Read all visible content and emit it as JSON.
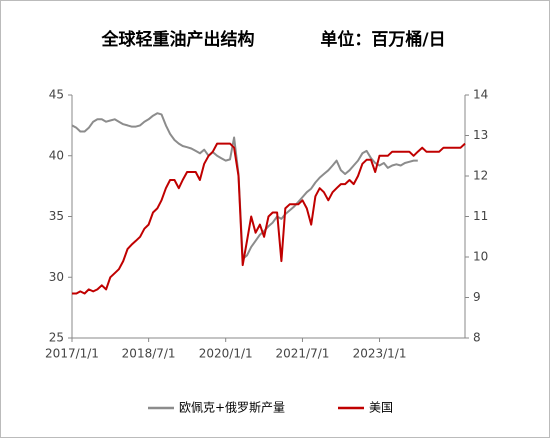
{
  "chart_data": {
    "type": "line",
    "title": "全球轻重油产出结构",
    "unit": "单位：百万桶/日",
    "x": [
      "2017-01-01",
      "2017-02-01",
      "2017-03-01",
      "2017-04-01",
      "2017-05-01",
      "2017-06-01",
      "2017-07-01",
      "2017-08-01",
      "2017-09-01",
      "2017-10-01",
      "2017-11-01",
      "2017-12-01",
      "2018-01-01",
      "2018-02-01",
      "2018-03-01",
      "2018-04-01",
      "2018-05-01",
      "2018-06-01",
      "2018-07-01",
      "2018-08-01",
      "2018-09-01",
      "2018-10-01",
      "2018-11-01",
      "2018-12-01",
      "2019-01-01",
      "2019-02-01",
      "2019-03-01",
      "2019-04-01",
      "2019-05-01",
      "2019-06-01",
      "2019-07-01",
      "2019-08-01",
      "2019-09-01",
      "2019-10-01",
      "2019-11-01",
      "2019-12-01",
      "2020-01-01",
      "2020-02-01",
      "2020-03-01",
      "2020-04-01",
      "2020-05-01",
      "2020-06-01",
      "2020-07-01",
      "2020-08-01",
      "2020-09-01",
      "2020-10-01",
      "2020-11-01",
      "2020-12-01",
      "2021-01-01",
      "2021-02-01",
      "2021-03-01",
      "2021-04-01",
      "2021-05-01",
      "2021-06-01",
      "2021-07-01",
      "2021-08-01",
      "2021-09-01",
      "2021-10-01",
      "2021-11-01",
      "2021-12-01",
      "2022-01-01",
      "2022-02-01",
      "2022-03-01",
      "2022-04-01",
      "2022-05-01",
      "2022-06-01",
      "2022-07-01",
      "2022-08-01",
      "2022-09-01",
      "2022-10-01",
      "2022-11-01",
      "2022-12-01",
      "2023-01-01",
      "2023-02-01",
      "2023-03-01",
      "2023-04-01",
      "2023-05-01",
      "2023-06-01",
      "2023-07-01",
      "2023-08-01",
      "2023-09-01",
      "2023-10-01",
      "2023-11-01",
      "2023-12-01",
      "2024-01-01",
      "2024-02-01",
      "2024-03-01",
      "2024-04-01",
      "2024-05-01",
      "2024-06-01",
      "2024-07-01",
      "2024-08-01",
      "2024-09-01"
    ],
    "series": [
      {
        "name": "欧佩克+俄罗斯产量",
        "color": "#8c8c8c",
        "values": [
          42.5,
          42.3,
          42.0,
          42.0,
          42.3,
          42.8,
          43.0,
          43.0,
          42.8,
          42.9,
          43.0,
          42.8,
          42.6,
          42.5,
          42.4,
          42.4,
          42.5,
          42.8,
          43.0,
          43.3,
          43.5,
          43.4,
          42.5,
          41.8,
          41.3,
          41.0,
          40.8,
          40.7,
          40.6,
          40.4,
          40.2,
          40.5,
          40.0,
          40.3,
          40.0,
          39.8,
          39.6,
          39.7,
          41.5,
          38.5,
          31.5,
          31.8,
          32.5,
          33.0,
          33.5,
          33.8,
          34.2,
          34.5,
          35.0,
          34.8,
          35.2,
          35.5,
          35.8,
          36.2,
          36.6,
          37.0,
          37.3,
          37.8,
          38.2,
          38.5,
          38.8,
          39.2,
          39.6,
          38.8,
          38.5,
          38.8,
          39.2,
          39.6,
          40.2,
          40.4,
          39.8,
          39.4,
          39.2,
          39.4,
          39.0,
          39.2,
          39.3,
          39.2,
          39.4,
          39.5,
          39.6,
          39.6,
          null,
          null,
          null,
          null,
          null,
          null,
          null,
          null,
          null,
          null,
          null
        ]
      },
      {
        "name": "美国",
        "color": "#c00000",
        "axis": "y2",
        "values": [
          9.1,
          9.1,
          9.15,
          9.1,
          9.2,
          9.15,
          9.2,
          9.3,
          9.2,
          9.5,
          9.6,
          9.7,
          9.9,
          10.2,
          10.3,
          10.4,
          10.5,
          10.7,
          10.8,
          11.1,
          11.2,
          11.4,
          11.7,
          11.9,
          11.9,
          11.7,
          11.9,
          12.1,
          12.1,
          12.1,
          11.9,
          12.3,
          12.5,
          12.6,
          12.8,
          12.8,
          12.8,
          12.8,
          12.7,
          12.0,
          9.8,
          10.4,
          11.0,
          10.6,
          10.8,
          10.5,
          11.0,
          11.1,
          11.1,
          9.9,
          11.2,
          11.3,
          11.3,
          11.3,
          11.4,
          11.2,
          10.8,
          11.5,
          11.7,
          11.6,
          11.4,
          11.6,
          11.7,
          11.8,
          11.8,
          11.9,
          11.8,
          12.0,
          12.3,
          12.4,
          12.4,
          12.1,
          12.5,
          12.5,
          12.5,
          12.6,
          12.6,
          12.6,
          12.6,
          12.6,
          12.5,
          12.6,
          12.7,
          12.6,
          12.6,
          12.6,
          12.6,
          12.7,
          12.7,
          12.7,
          12.7,
          12.7,
          12.8
        ]
      }
    ],
    "xlim": [
      "2017-01-01",
      "2024-09-01"
    ],
    "xticks": [
      {
        "value": "2017-01-01",
        "label": "2017/1/1"
      },
      {
        "value": "2018-07-01",
        "label": "2018/7/1"
      },
      {
        "value": "2020-01-01",
        "label": "2020/1/1"
      },
      {
        "value": "2021-07-01",
        "label": "2021/7/1"
      },
      {
        "value": "2023-01-01",
        "label": "2023/1/1"
      }
    ],
    "ylim": [
      25,
      45
    ],
    "yticks": [
      25,
      30,
      35,
      40,
      45
    ],
    "y2lim": [
      8,
      14
    ],
    "y2ticks": [
      8,
      9,
      10,
      11,
      12,
      13,
      14
    ],
    "legend": "bottom"
  }
}
